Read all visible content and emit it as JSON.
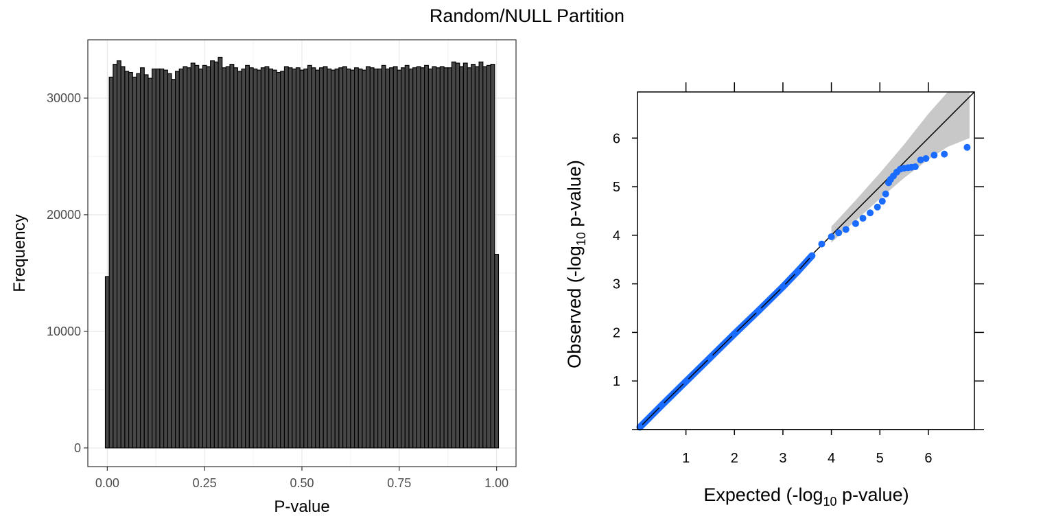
{
  "figure": {
    "title": "Random/NULL Partition"
  },
  "chart_data": [
    {
      "type": "bar",
      "subtype": "histogram",
      "xlabel": "P-value",
      "ylabel": "Frequency",
      "xlim": [
        -0.05,
        1.05
      ],
      "ylim": [
        -1600,
        35000
      ],
      "x_ticks": [
        "0.00",
        "0.25",
        "0.50",
        "0.75",
        "1.00"
      ],
      "y_ticks": [
        "0",
        "10000",
        "20000",
        "30000"
      ],
      "bin_width": 0.01,
      "first_bin_center": 0.0,
      "values": [
        14700,
        31800,
        32900,
        33200,
        32700,
        32300,
        32200,
        31800,
        32100,
        32600,
        32000,
        31700,
        32500,
        32500,
        32500,
        32400,
        32100,
        31600,
        32300,
        32500,
        32700,
        32600,
        33000,
        32800,
        32500,
        32800,
        32700,
        33200,
        33100,
        33500,
        32600,
        32700,
        32900,
        32600,
        32300,
        32500,
        32800,
        32600,
        32500,
        32400,
        32600,
        32700,
        32500,
        32400,
        32200,
        32300,
        32700,
        32600,
        32500,
        32600,
        32400,
        32500,
        32800,
        32600,
        32400,
        32600,
        32700,
        32500,
        32400,
        32500,
        32600,
        32700,
        32500,
        32400,
        32600,
        32500,
        32400,
        32700,
        32600,
        32500,
        32500,
        32800,
        32500,
        32600,
        32700,
        32400,
        32600,
        32800,
        32500,
        32600,
        32700,
        32600,
        32800,
        32500,
        32700,
        32600,
        32700,
        32600,
        32600,
        33100,
        33000,
        32700,
        33000,
        32600,
        32900,
        32700,
        33100,
        32700,
        32800,
        32900,
        16600
      ],
      "grid": true,
      "fill_color": "#474747",
      "edge_color": "#000000"
    },
    {
      "type": "scatter",
      "subtype": "qq-plot",
      "xlabel": "Expected (-log10 p-value)",
      "ylabel": "Observed (-log10 p-value)",
      "xlim": [
        0,
        6.95
      ],
      "ylim": [
        0,
        6.95
      ],
      "x_ticks": [
        "1",
        "2",
        "3",
        "4",
        "5",
        "6"
      ],
      "y_ticks": [
        "1",
        "2",
        "3",
        "4",
        "5",
        "6"
      ],
      "reference_line": "y = x",
      "point_color": "#1a6bff",
      "band_color": "#c8c8c8",
      "confidence_band": {
        "x": [
          4.0,
          4.5,
          5.0,
          5.5,
          6.0,
          6.4,
          6.85
        ],
        "upper": [
          4.18,
          4.72,
          5.28,
          5.87,
          6.5,
          6.95,
          6.95
        ],
        "lower": [
          3.85,
          4.3,
          4.75,
          5.18,
          5.56,
          5.82,
          6.0
        ]
      },
      "points": {
        "x": [
          0.05,
          0.5,
          1.0,
          1.5,
          2.0,
          2.5,
          3.0,
          3.3,
          3.6,
          3.8,
          4.0,
          4.15,
          4.3,
          4.5,
          4.65,
          4.8,
          4.95,
          5.05,
          5.12,
          5.18,
          5.22,
          5.28,
          5.35,
          5.42,
          5.5,
          5.58,
          5.65,
          5.73,
          5.84,
          5.95,
          6.12,
          6.33,
          6.8
        ],
        "y": [
          0.05,
          0.5,
          0.99,
          1.48,
          1.97,
          2.45,
          2.94,
          3.25,
          3.58,
          3.82,
          3.97,
          4.05,
          4.12,
          4.24,
          4.35,
          4.46,
          4.58,
          4.7,
          4.85,
          5.08,
          5.15,
          5.22,
          5.3,
          5.36,
          5.38,
          5.39,
          5.4,
          5.41,
          5.55,
          5.58,
          5.65,
          5.67,
          5.81
        ]
      }
    }
  ]
}
